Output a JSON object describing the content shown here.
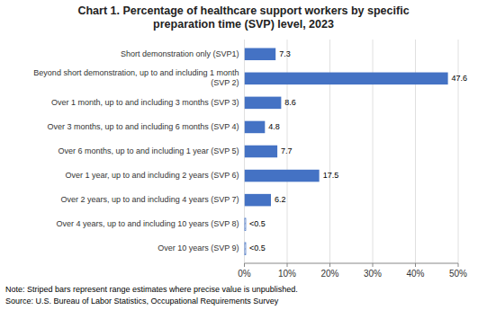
{
  "chart_data": {
    "type": "bar",
    "orientation": "horizontal",
    "title": "Chart 1. Percentage of healthcare support workers by specific\npreparation time (SVP) level, 2023",
    "categories": [
      "Over 10 years (SVP 9)",
      "Over 4 years, up to and including 10 years (SVP 8)",
      "Over 2 years, up to and including 4 years (SVP 7)",
      "Over 1 year, up to and including 2 years (SVP 6)",
      "Over 6 months, up to and including 1 year (SVP 5)",
      "Over 3 months, up to and including 6 months (SVP 4)",
      "Over 1 month, up to and including 3 months (SVP 3)",
      "Beyond short demonstration, up to and including 1 month\n(SVP 2)",
      "Short demonstration only (SVP1)"
    ],
    "values": [
      0.3,
      0.3,
      6.2,
      17.5,
      7.7,
      4.8,
      8.6,
      47.6,
      7.3
    ],
    "value_labels": [
      "<0.5",
      "<0.5",
      "6.2",
      "17.5",
      "7.7",
      "4.8",
      "8.6",
      "47.6",
      "7.3"
    ],
    "data_labels": true,
    "color": "#4472C4",
    "colors": [
      "#ffffff",
      "#ffffff",
      "#4472C4",
      "#4472C4",
      "#4472C4",
      "#4472C4",
      "#4472C4",
      "#4472C4",
      "#4472C4"
    ],
    "xlim": [
      0,
      50
    ],
    "xticks": [
      {
        "value": 0,
        "label": "0%"
      },
      {
        "value": 10,
        "label": "10%"
      },
      {
        "value": 20,
        "label": "20%"
      },
      {
        "value": 30,
        "label": "30%"
      },
      {
        "value": 40,
        "label": "40%"
      },
      {
        "value": 50,
        "label": "50%"
      }
    ],
    "grid": true,
    "annotations": [
      "Note: Striped bars represent range estimates where precise value is unpublished.",
      "Source: U.S. Bureau of Labor Statistics, Occupational Requirements Survey"
    ]
  }
}
